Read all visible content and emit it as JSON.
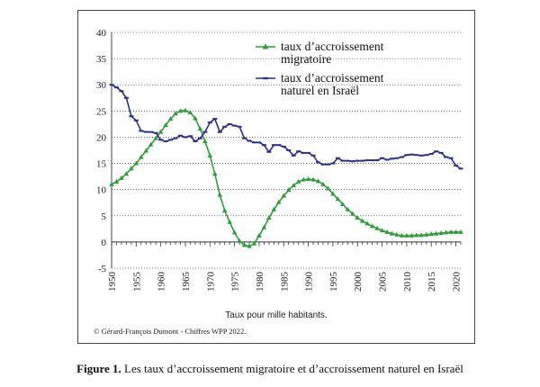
{
  "chart_data": {
    "type": "line",
    "title": "",
    "xlabel": "Taux pour mille habitants.",
    "ylabel": "",
    "xlim": [
      1950,
      2021
    ],
    "ylim": [
      -5,
      40
    ],
    "x_ticks": [
      "1950",
      "1955",
      "1960",
      "1965",
      "1970",
      "1975",
      "1980",
      "1985",
      "1990",
      "1995",
      "2000",
      "2005",
      "2010",
      "2015",
      "2020"
    ],
    "y_ticks": [
      "40",
      "35",
      "30",
      "25",
      "20",
      "15",
      "10",
      "5",
      "0",
      "-5"
    ],
    "legend_position": "top-right",
    "grid": "horizontal-dotted",
    "series": [
      {
        "name": "taux  d’accroissement migratoire",
        "name_lines": [
          "taux  d’accroissement",
          "migratoire"
        ],
        "color": "#2e9e3a",
        "marker": "triangle",
        "x": [
          1950,
          1951,
          1952,
          1953,
          1954,
          1955,
          1956,
          1957,
          1958,
          1959,
          1960,
          1961,
          1962,
          1963,
          1964,
          1965,
          1966,
          1967,
          1968,
          1969,
          1970,
          1971,
          1972,
          1973,
          1974,
          1975,
          1976,
          1977,
          1978,
          1979,
          1980,
          1981,
          1982,
          1983,
          1984,
          1985,
          1986,
          1987,
          1988,
          1989,
          1990,
          1991,
          1992,
          1993,
          1994,
          1995,
          1996,
          1997,
          1998,
          1999,
          2000,
          2001,
          2002,
          2003,
          2004,
          2005,
          2006,
          2007,
          2008,
          2009,
          2010,
          2011,
          2012,
          2013,
          2014,
          2015,
          2016,
          2017,
          2018,
          2019,
          2020,
          2021
        ],
        "y": [
          11.0,
          11.5,
          12.2,
          13.0,
          14.0,
          15.0,
          16.2,
          17.4,
          18.6,
          19.8,
          21.0,
          22.3,
          23.5,
          24.5,
          25.0,
          25.1,
          24.7,
          23.6,
          21.6,
          19.2,
          16.5,
          13.0,
          9.0,
          6.0,
          3.8,
          1.8,
          0.2,
          -0.6,
          -0.8,
          -0.3,
          1.2,
          2.8,
          4.6,
          6.2,
          7.6,
          8.8,
          9.9,
          10.8,
          11.5,
          11.9,
          12.0,
          11.9,
          11.6,
          11.0,
          10.2,
          9.2,
          8.2,
          7.2,
          6.2,
          5.4,
          4.6,
          4.0,
          3.5,
          3.0,
          2.6,
          2.2,
          1.9,
          1.6,
          1.4,
          1.2,
          1.2,
          1.2,
          1.3,
          1.3,
          1.4,
          1.5,
          1.6,
          1.7,
          1.8,
          1.9,
          1.9,
          1.9
        ]
      },
      {
        "name": "taux d’accroissement naturel en Israël",
        "name_lines": [
          "taux d’accroissement",
          "naturel en Israël"
        ],
        "color": "#2a2f8a",
        "marker": "dash",
        "x": [
          1950,
          1951,
          1952,
          1953,
          1954,
          1955,
          1956,
          1957,
          1958,
          1959,
          1960,
          1961,
          1962,
          1963,
          1964,
          1965,
          1966,
          1967,
          1968,
          1969,
          1970,
          1971,
          1972,
          1973,
          1974,
          1975,
          1976,
          1977,
          1978,
          1979,
          1980,
          1981,
          1982,
          1983,
          1984,
          1985,
          1986,
          1987,
          1988,
          1989,
          1990,
          1991,
          1992,
          1993,
          1994,
          1995,
          1996,
          1997,
          1998,
          1999,
          2000,
          2001,
          2002,
          2003,
          2004,
          2005,
          2006,
          2007,
          2008,
          2009,
          2010,
          2011,
          2012,
          2013,
          2014,
          2015,
          2016,
          2017,
          2018,
          2019,
          2020,
          2021
        ],
        "y": [
          30.0,
          29.5,
          28.8,
          27.5,
          24.0,
          23.2,
          21.2,
          21.0,
          21.0,
          20.8,
          19.5,
          19.2,
          19.5,
          19.8,
          20.3,
          20.0,
          20.2,
          19.2,
          19.8,
          21.0,
          22.8,
          23.5,
          21.0,
          22.0,
          22.5,
          22.2,
          22.0,
          19.8,
          19.3,
          19.0,
          19.0,
          18.5,
          17.2,
          18.5,
          18.5,
          18.2,
          17.5,
          16.5,
          17.3,
          17.0,
          17.0,
          16.5,
          15.2,
          14.8,
          14.8,
          15.0,
          16.0,
          15.5,
          15.5,
          15.4,
          15.5,
          15.5,
          15.6,
          15.6,
          15.6,
          16.0,
          15.7,
          15.9,
          16.0,
          16.2,
          16.6,
          16.7,
          16.6,
          16.5,
          16.6,
          16.8,
          17.3,
          17.0,
          16.2,
          16.0,
          14.6,
          14.0
        ]
      }
    ]
  },
  "credit": "© Gérard-François Dumont - Chiffres WPP 2022.",
  "caption": {
    "label": "Figure 1.",
    "text": " Les taux d’accroissement migratoire et d’accroissement naturel en Israël"
  }
}
